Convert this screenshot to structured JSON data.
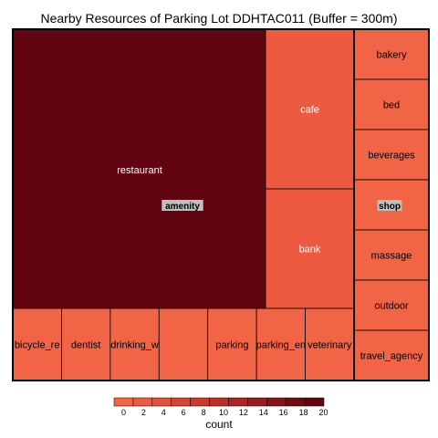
{
  "chart_data": {
    "type": "treemap",
    "title": "Nearby Resources of Parking Lot DDHTAC011 (Buffer = 300m)",
    "fill_metric": "count",
    "groups": [
      {
        "name": "amenity",
        "items": [
          {
            "name": "restaurant",
            "label": "restaurant",
            "count": 20
          },
          {
            "name": "cafe",
            "label": "cafe",
            "count": 3
          },
          {
            "name": "bank",
            "label": "bank",
            "count": 2
          },
          {
            "name": "bicycle_rental",
            "label": "bicycle_re",
            "count": 1
          },
          {
            "name": "dentist",
            "label": "dentist",
            "count": 1
          },
          {
            "name": "drinking_water",
            "label": "drinking_w",
            "count": 1
          },
          {
            "name": "",
            "label": "",
            "count": 1
          },
          {
            "name": "parking",
            "label": "parking",
            "count": 1
          },
          {
            "name": "parking_entrance",
            "label": "parking_en",
            "count": 1
          },
          {
            "name": "veterinary",
            "label": "veterinary",
            "count": 1
          }
        ]
      },
      {
        "name": "shop",
        "items": [
          {
            "name": "bakery",
            "label": "bakery",
            "count": 1
          },
          {
            "name": "bed",
            "label": "bed",
            "count": 1
          },
          {
            "name": "beverages",
            "label": "beverages",
            "count": 1
          },
          {
            "name": "",
            "label": "",
            "count": 1
          },
          {
            "name": "massage",
            "label": "massage",
            "count": 1
          },
          {
            "name": "outdoor",
            "label": "outdoor",
            "count": 1
          },
          {
            "name": "travel_agency",
            "label": "travel_agency",
            "count": 1
          }
        ]
      }
    ],
    "legend": {
      "title": "count",
      "position": "bottom",
      "ticks": [
        0,
        2,
        4,
        6,
        8,
        10,
        12,
        14,
        16,
        18,
        20
      ],
      "range": [
        0,
        21
      ],
      "colors": [
        "#f26446",
        "#ee5a40",
        "#e4503a",
        "#d84434",
        "#cc392e",
        "#bd2e29",
        "#ab2423",
        "#981b1e",
        "#841218",
        "#700b13",
        "#620510"
      ]
    }
  }
}
